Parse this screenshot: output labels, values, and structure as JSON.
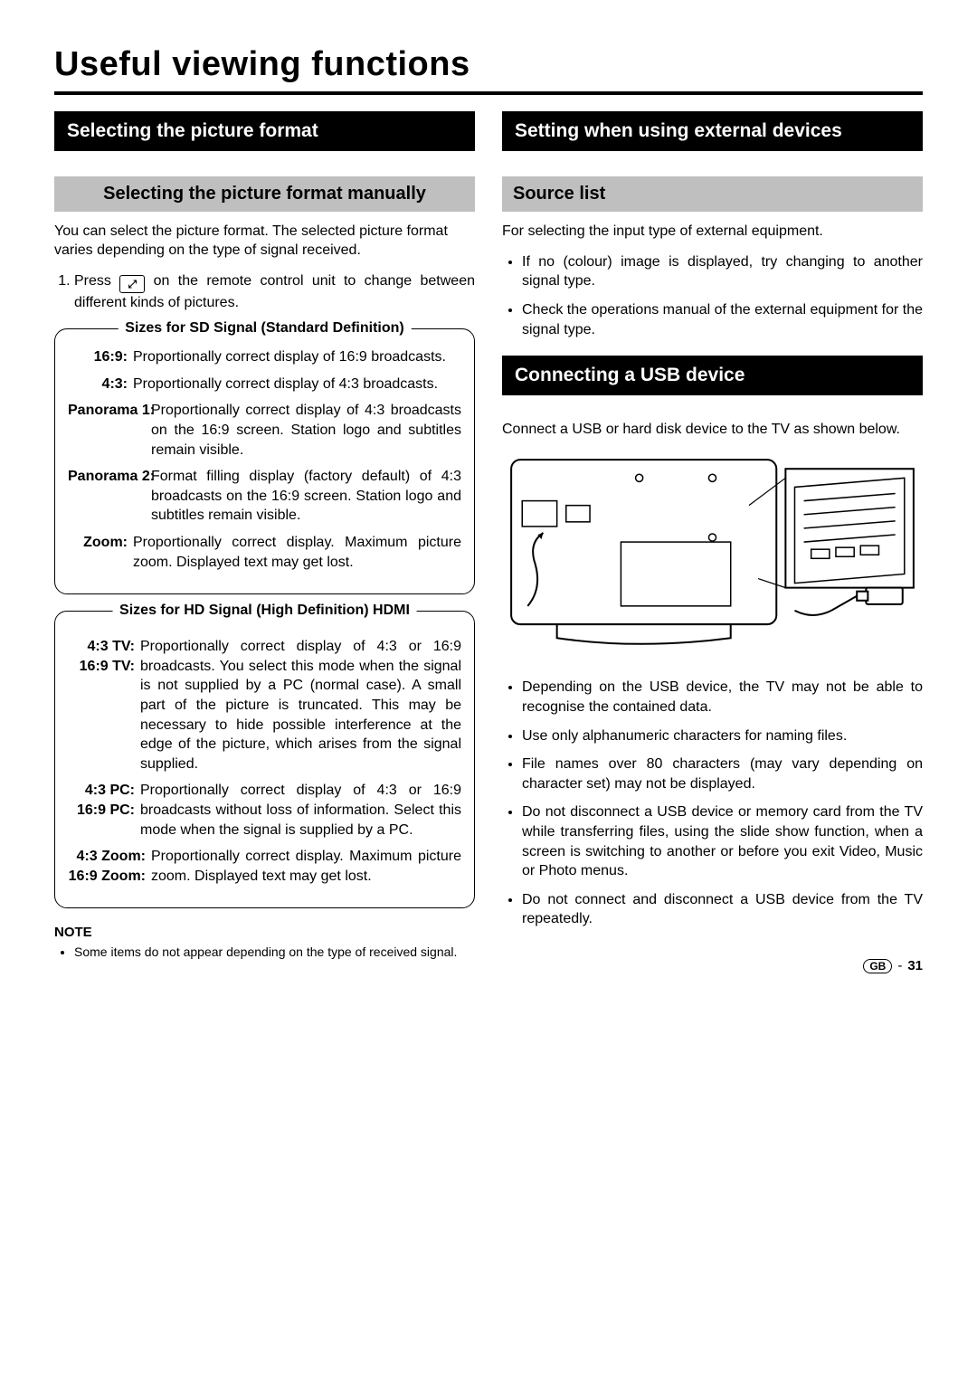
{
  "page": {
    "title": "Useful viewing functions",
    "footer_region": "GB",
    "footer_sep": "-",
    "footer_page": "31"
  },
  "left": {
    "heading_black": "Selecting the picture format",
    "heading_gray": "Selecting the picture format manually",
    "intro": "You can select the picture format. The selected picture format varies depending on the type of signal received.",
    "step1_a": "Press ",
    "step1_b": " on the remote control unit to change between different kinds of pictures.",
    "icon_glyph": "⤢",
    "box_sd": {
      "title": "Sizes for SD Signal (Standard Definition)",
      "items": [
        {
          "label": "16:9:",
          "text": "Proportionally correct display of 16:9 broadcasts.",
          "w": "w2"
        },
        {
          "label": "4:3:",
          "text": "Proportionally correct display of 4:3 broadcasts.",
          "w": "w2"
        },
        {
          "label": "Panorama 1:",
          "text": "Proportionally correct display of 4:3 broadcasts on the 16:9 screen. Station logo and subtitles remain visible.",
          "w": "w1"
        },
        {
          "label": "Panorama 2:",
          "text": "Format filling display (factory default) of 4:3 broadcasts on the 16:9 screen. Station logo and subtitles remain visible.",
          "w": "w1"
        },
        {
          "label": "Zoom:",
          "text": "Proportionally correct display. Maximum picture zoom. Displayed text may get lost.",
          "w": "w2"
        }
      ]
    },
    "box_hd": {
      "title": "Sizes for HD Signal (High Definition) HDMI",
      "items": [
        {
          "label_a": "4:3 TV:",
          "label_b": "16:9 TV:",
          "text": "Proportionally correct display of 4:3 or 16:9 broadcasts. You select this mode when the signal is not supplied by a PC (normal case). A small part of the picture is truncated. This may be necessary to hide possible interference at the edge of the picture, which arises from the signal supplied.",
          "w": "w3"
        },
        {
          "label_a": "4:3 PC:",
          "label_b": "16:9 PC:",
          "text": "Proportionally correct display of 4:3 or 16:9 broadcasts without loss of information. Select this mode when the signal is supplied by a PC.",
          "w": "w3"
        },
        {
          "label_a": "4:3 Zoom:",
          "label_b": "16:9 Zoom:",
          "text": "Proportionally correct display. Maximum picture zoom. Displayed text may get lost.",
          "w": "w4"
        }
      ]
    },
    "note_label": "NOTE",
    "note_items": [
      "Some items do not appear depending on the type of received signal."
    ]
  },
  "right": {
    "heading_black_1": "Setting when using external devices",
    "heading_gray": "Source list",
    "source_intro": "For selecting the input type of external equipment.",
    "source_bullets": [
      "If no (colour) image is displayed, try changing to another signal type.",
      "Check the operations manual of the external equipment for the signal type."
    ],
    "heading_black_2": "Connecting a USB device",
    "usb_intro": "Connect a USB or hard disk device to the TV as shown below.",
    "usb_bullets": [
      "Depending on the USB device, the TV may not be able to recognise the contained data.",
      "Use only alphanumeric characters for naming files.",
      "File names over 80 characters (may vary depending on character set) may not be displayed.",
      "Do not disconnect a USB device or memory card from the TV while transferring files, using the slide show function, when a screen is switching to another or before you exit Video, Music or Photo menus.",
      "Do not connect and disconnect a USB device from the TV repeatedly."
    ]
  },
  "diagram": {
    "stroke": "#000000",
    "fill": "#ffffff",
    "bg": "#ffffff"
  }
}
